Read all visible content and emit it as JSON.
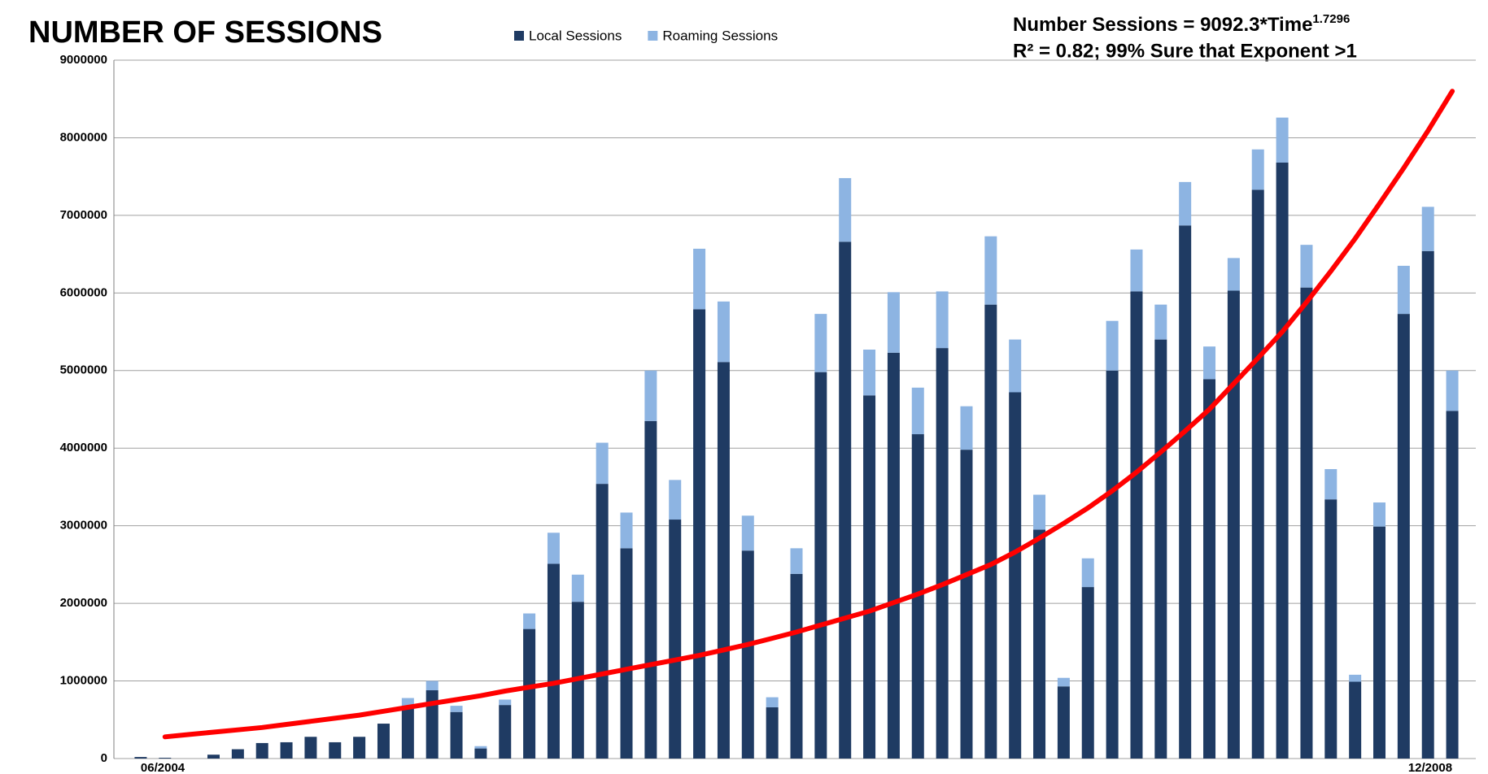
{
  "chart_data": {
    "type": "stacked-bar",
    "title": "NUMBER OF SESSIONS",
    "annotation": [
      "Number Sessions = 9092.3*Time",
      "1.7296",
      "R² = 0.82; 99% Sure that Exponent >1"
    ],
    "categories": [
      "06/2004",
      null,
      null,
      null,
      null,
      null,
      null,
      null,
      null,
      null,
      null,
      null,
      null,
      null,
      null,
      null,
      null,
      null,
      null,
      null,
      null,
      null,
      null,
      null,
      null,
      null,
      null,
      null,
      null,
      null,
      null,
      null,
      null,
      null,
      null,
      null,
      null,
      null,
      null,
      null,
      null,
      null,
      null,
      null,
      null,
      null,
      null,
      null,
      null,
      null,
      null,
      null,
      null,
      null,
      "12/2008"
    ],
    "series": [
      {
        "name": "Local Sessions",
        "color": "#1f3b63",
        "values": [
          20000,
          10000,
          0,
          50000,
          120000,
          200000,
          210000,
          280000,
          210000,
          280000,
          450000,
          650000,
          880000,
          600000,
          130000,
          690000,
          1670000,
          2510000,
          2020000,
          3540000,
          2710000,
          4350000,
          3080000,
          5790000,
          5110000,
          2680000,
          660000,
          2380000,
          4980000,
          6660000,
          4680000,
          5230000,
          4180000,
          5290000,
          3980000,
          5850000,
          4720000,
          2950000,
          930000,
          2210000,
          5000000,
          6020000,
          5400000,
          6870000,
          4890000,
          6030000,
          7330000,
          7680000,
          6070000,
          3340000,
          990000,
          2990000,
          5730000,
          6540000,
          4480000
        ]
      },
      {
        "name": "Roaming Sessions",
        "color": "#8db4e2",
        "values": [
          0,
          0,
          0,
          0,
          0,
          0,
          0,
          0,
          0,
          0,
          0,
          130000,
          120000,
          80000,
          30000,
          70000,
          200000,
          400000,
          350000,
          530000,
          460000,
          650000,
          510000,
          780000,
          780000,
          450000,
          130000,
          330000,
          750000,
          820000,
          590000,
          780000,
          600000,
          730000,
          560000,
          880000,
          680000,
          450000,
          110000,
          370000,
          640000,
          540000,
          450000,
          560000,
          420000,
          420000,
          520000,
          580000,
          550000,
          390000,
          90000,
          310000,
          620000,
          570000,
          520000
        ]
      }
    ],
    "trend": {
      "color": "#ff0000",
      "values": [
        null,
        280000,
        310000,
        340000,
        370000,
        400000,
        440000,
        480000,
        520000,
        560000,
        610000,
        660000,
        710000,
        760000,
        810000,
        870000,
        920000,
        970000,
        1030000,
        1090000,
        1150000,
        1210000,
        1270000,
        1330000,
        1400000,
        1470000,
        1550000,
        1630000,
        1720000,
        1810000,
        1900000,
        2010000,
        2120000,
        2240000,
        2370000,
        2500000,
        2660000,
        2840000,
        3030000,
        3230000,
        3450000,
        3690000,
        3950000,
        4220000,
        4500000,
        4830000,
        5160000,
        5500000,
        5880000,
        6280000,
        6700000,
        7150000,
        7610000,
        8090000,
        8600000
      ]
    },
    "ylim": [
      0,
      9000000
    ],
    "yticks": [
      0,
      1000000,
      2000000,
      3000000,
      4000000,
      5000000,
      6000000,
      7000000,
      8000000,
      9000000
    ],
    "grid": true
  }
}
